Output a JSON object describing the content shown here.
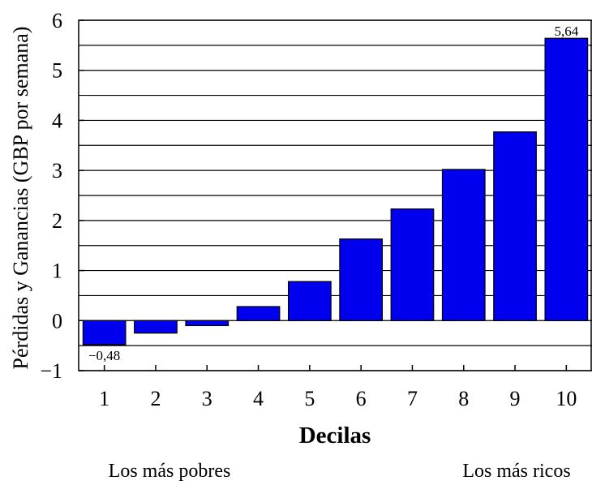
{
  "chart_data": {
    "type": "bar",
    "categories": [
      "1",
      "2",
      "3",
      "4",
      "5",
      "6",
      "7",
      "8",
      "9",
      "10"
    ],
    "values": [
      -0.48,
      -0.25,
      -0.1,
      0.28,
      0.78,
      1.63,
      2.23,
      3.02,
      3.77,
      5.64
    ],
    "xlabel": "Decilas",
    "ylabel": "Pérdidas y Ganancias (GBP por semana)",
    "ylim": [
      -1,
      6
    ],
    "yticks": [
      -1,
      0,
      1,
      2,
      3,
      4,
      5,
      6
    ],
    "ytick_labels": [
      "−1",
      "0",
      "1",
      "2",
      "3",
      "4",
      "5",
      "6"
    ],
    "grid": true,
    "bar_color": "#0000ee",
    "data_labels": [
      {
        "category": "1",
        "text": "−0,48"
      },
      {
        "category": "10",
        "text": "5,64"
      }
    ],
    "annotations": {
      "left": "Los más pobres",
      "right": "Los más ricos"
    }
  }
}
